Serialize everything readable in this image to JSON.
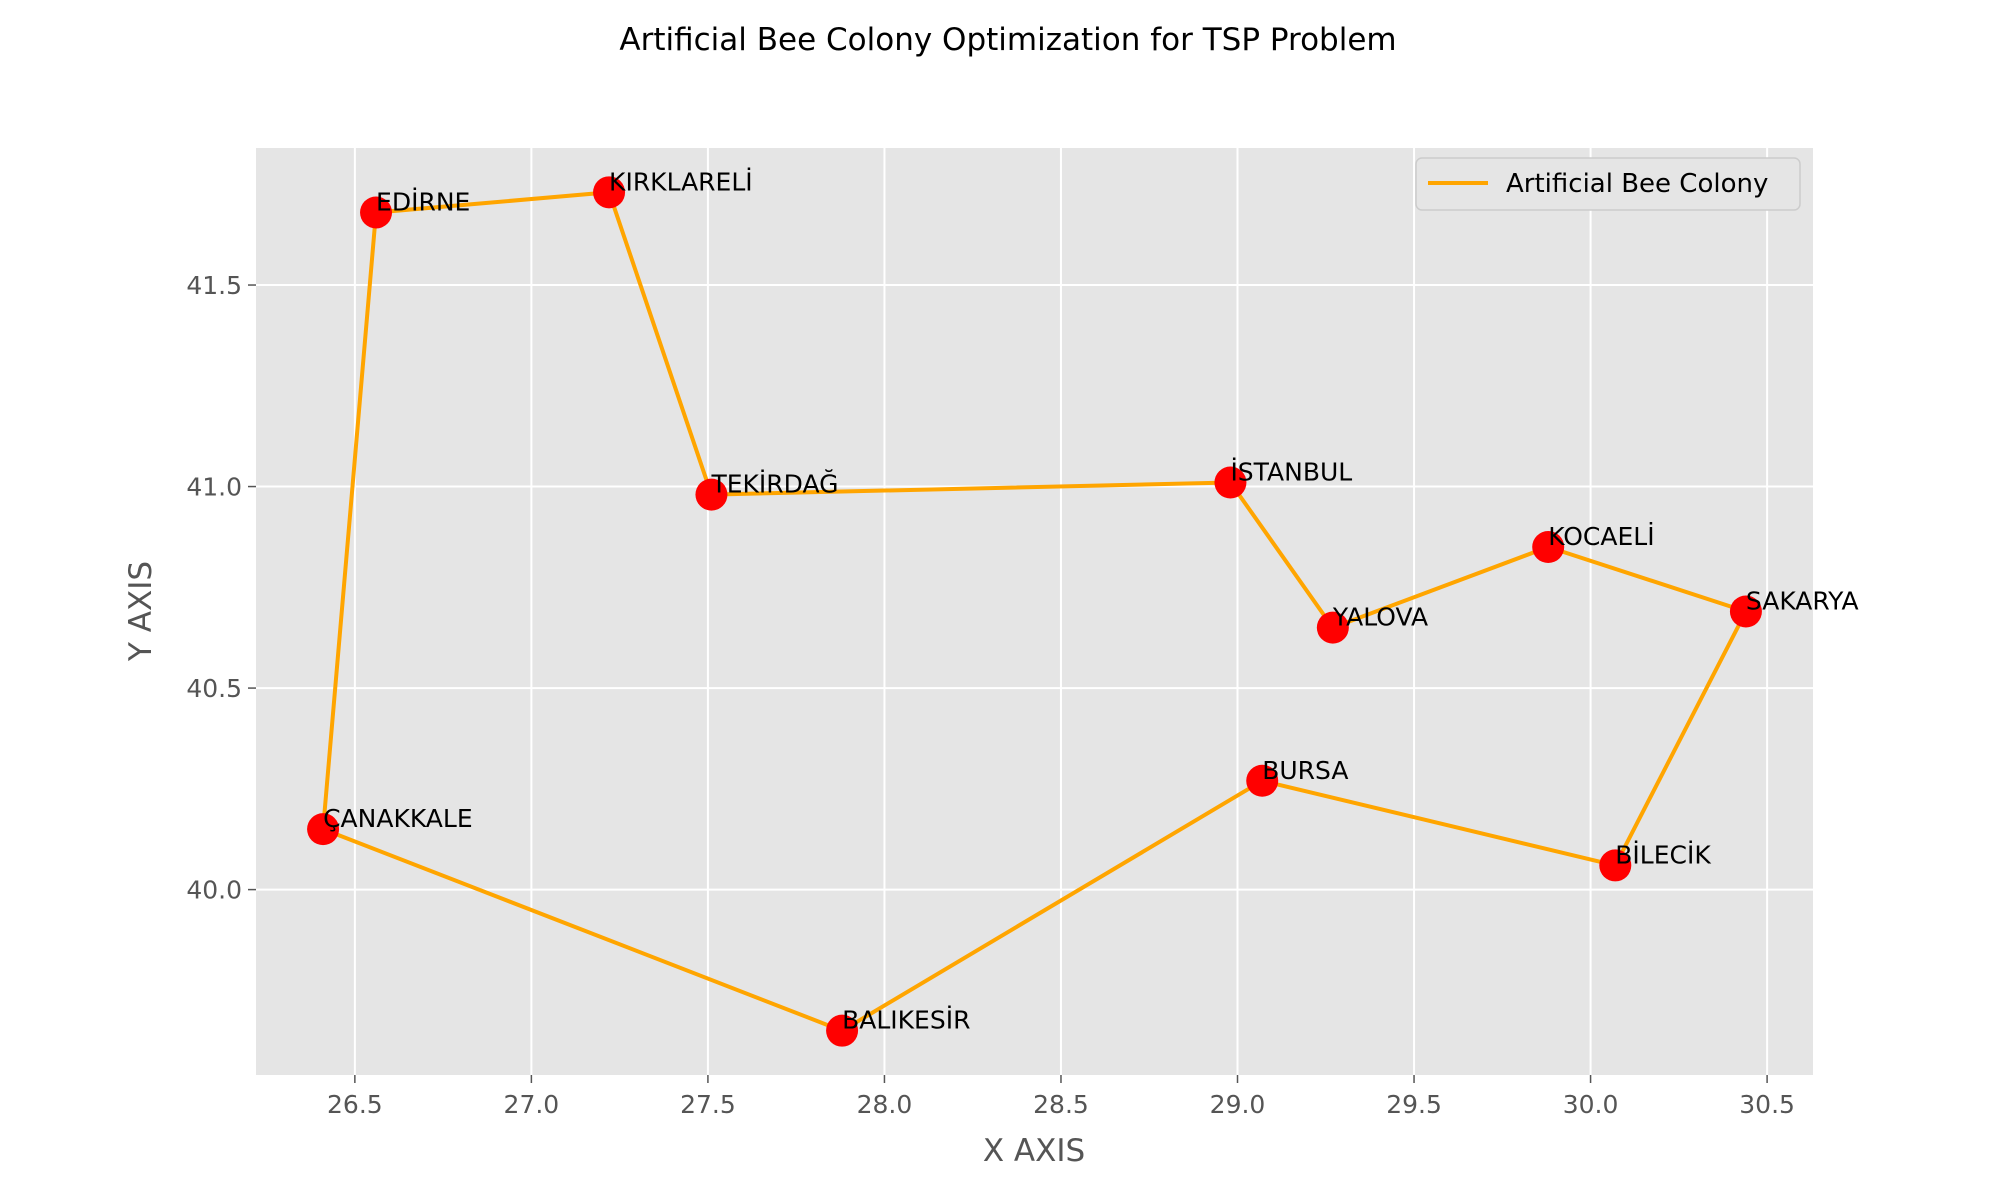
{
  "chart_data": {
    "type": "line",
    "title": "Artificial Bee Colony Optimization for TSP Problem",
    "xlabel": "X AXIS",
    "ylabel": "Y AXIS",
    "xlim": [
      26.22,
      30.63
    ],
    "ylim": [
      39.54,
      41.84
    ],
    "xticks": [
      26.5,
      27.0,
      27.5,
      28.0,
      28.5,
      29.0,
      29.5,
      30.0,
      30.5
    ],
    "xtick_labels": [
      "26.5",
      "27.0",
      "27.5",
      "28.0",
      "28.5",
      "29.0",
      "29.5",
      "30.0",
      "30.5"
    ],
    "yticks": [
      40.0,
      40.5,
      41.0,
      41.5
    ],
    "ytick_labels": [
      "40.0",
      "40.5",
      "41.0",
      "41.5"
    ],
    "grid": true,
    "legend_position": "top-right",
    "series": [
      {
        "name": "Artificial Bee Colony",
        "color": "#FFA500",
        "route": [
          "ÇANAKKALE",
          "EDİRNE",
          "KIRKLARELİ",
          "TEKİRDAĞ",
          "İSTANBUL",
          "YALOVA",
          "KOCAELİ",
          "SAKARYA",
          "BİLECİK",
          "BURSA",
          "BALIKESİR",
          "ÇANAKKALE"
        ]
      }
    ],
    "points": [
      {
        "name": "ÇANAKKALE",
        "x": 26.41,
        "y": 40.15
      },
      {
        "name": "EDİRNE",
        "x": 26.56,
        "y": 41.68
      },
      {
        "name": "KIRKLARELİ",
        "x": 27.22,
        "y": 41.73
      },
      {
        "name": "TEKİRDAĞ",
        "x": 27.51,
        "y": 40.98
      },
      {
        "name": "İSTANBUL",
        "x": 28.98,
        "y": 41.01
      },
      {
        "name": "YALOVA",
        "x": 29.27,
        "y": 40.65
      },
      {
        "name": "KOCAELİ",
        "x": 29.88,
        "y": 40.85
      },
      {
        "name": "SAKARYA",
        "x": 30.44,
        "y": 40.69
      },
      {
        "name": "BİLECİK",
        "x": 30.07,
        "y": 40.06
      },
      {
        "name": "BURSA",
        "x": 29.07,
        "y": 40.27
      },
      {
        "name": "BALIKESİR",
        "x": 27.88,
        "y": 39.65
      }
    ],
    "point_color": "#FF0000"
  }
}
